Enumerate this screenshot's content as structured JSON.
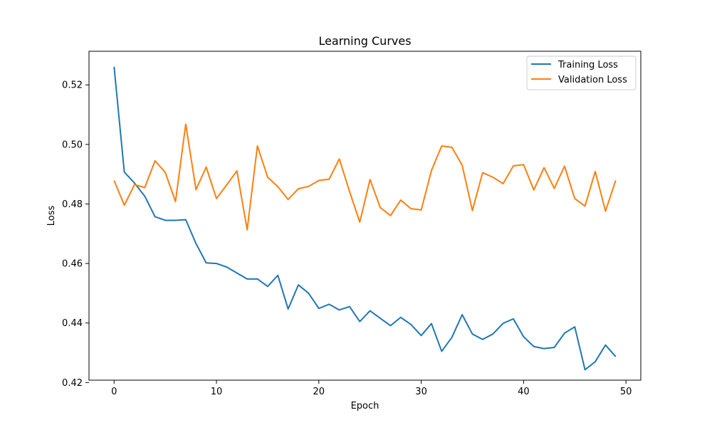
{
  "chart_data": {
    "type": "line",
    "title": "Learning Curves",
    "xlabel": "Epoch",
    "ylabel": "Loss",
    "xlim": [
      -2.45,
      51.45
    ],
    "ylim": [
      0.4208,
      0.5313
    ],
    "xticks": [
      0,
      10,
      20,
      30,
      40,
      50
    ],
    "yticks": [
      0.42,
      0.44,
      0.46,
      0.48,
      0.5,
      0.52
    ],
    "ytick_labels": [
      "0.42",
      "0.44",
      "0.46",
      "0.48",
      "0.50",
      "0.52"
    ],
    "grid": false,
    "legend_position": "top-right",
    "x": [
      0,
      1,
      2,
      3,
      4,
      5,
      6,
      7,
      8,
      9,
      10,
      11,
      12,
      13,
      14,
      15,
      16,
      17,
      18,
      19,
      20,
      21,
      22,
      23,
      24,
      25,
      26,
      27,
      28,
      29,
      30,
      31,
      32,
      33,
      34,
      35,
      36,
      37,
      38,
      39,
      40,
      41,
      42,
      43,
      44,
      45,
      46,
      47,
      48,
      49
    ],
    "series": [
      {
        "name": "Training Loss",
        "color": "#1f77b4",
        "values": [
          0.5261,
          0.4907,
          0.487,
          0.4826,
          0.4757,
          0.4745,
          0.4745,
          0.4747,
          0.4667,
          0.4602,
          0.46,
          0.4588,
          0.4568,
          0.4548,
          0.4548,
          0.4523,
          0.456,
          0.4447,
          0.4528,
          0.45,
          0.4449,
          0.4463,
          0.4444,
          0.4455,
          0.4405,
          0.4441,
          0.4416,
          0.4391,
          0.4419,
          0.4395,
          0.4358,
          0.4398,
          0.4305,
          0.4352,
          0.4428,
          0.4363,
          0.4345,
          0.4363,
          0.4399,
          0.4414,
          0.4354,
          0.4321,
          0.4314,
          0.4318,
          0.4366,
          0.4387,
          0.4243,
          0.427,
          0.4326,
          0.4287
        ]
      },
      {
        "name": "Validation Loss",
        "color": "#ff7f0e",
        "values": [
          0.4879,
          0.4796,
          0.4865,
          0.4855,
          0.4945,
          0.4906,
          0.4808,
          0.5068,
          0.4848,
          0.4924,
          0.4818,
          0.4864,
          0.4911,
          0.4713,
          0.4995,
          0.489,
          0.4858,
          0.4815,
          0.4851,
          0.4859,
          0.4879,
          0.4883,
          0.4951,
          0.4842,
          0.4739,
          0.4882,
          0.4788,
          0.4761,
          0.4813,
          0.4784,
          0.478,
          0.4912,
          0.4995,
          0.499,
          0.493,
          0.4778,
          0.4905,
          0.489,
          0.4868,
          0.4928,
          0.4932,
          0.4847,
          0.4922,
          0.4852,
          0.4927,
          0.4818,
          0.4793,
          0.4909,
          0.4776,
          0.4879
        ]
      }
    ]
  }
}
